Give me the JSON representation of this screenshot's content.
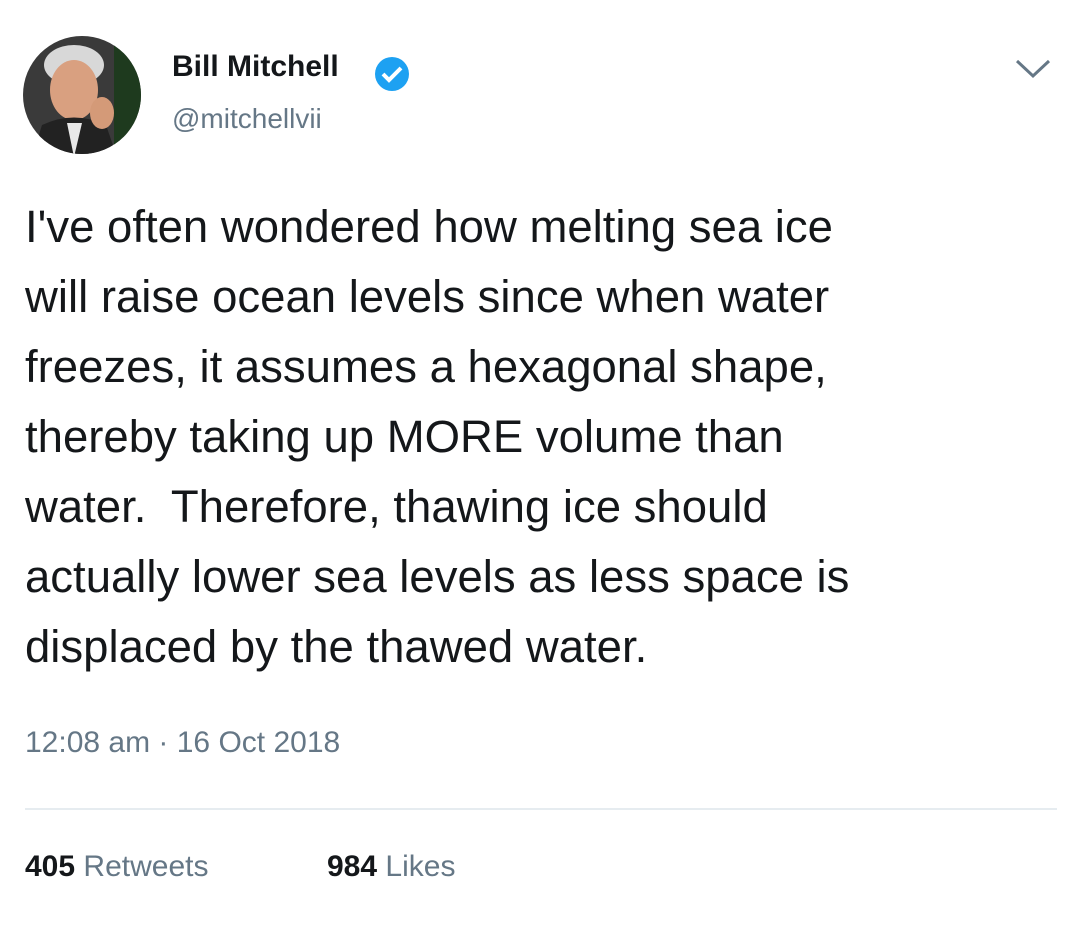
{
  "user": {
    "name": "Bill Mitchell",
    "handle": "@mitchellvii"
  },
  "tweet": {
    "lines": [
      "I've often wondered how melting sea ice",
      "will raise ocean levels since when water",
      "freezes, it assumes a hexagonal shape,",
      "thereby taking up MORE volume than",
      "water.  Therefore, thawing ice should",
      "actually lower sea levels as less space is",
      "displaced by the thawed water."
    ],
    "timestamp": "12:08 am · 16 Oct 2018"
  },
  "stats": {
    "retweets": {
      "count": 405,
      "label": "Retweets"
    },
    "likes": {
      "count": 984,
      "label": "Likes"
    }
  }
}
